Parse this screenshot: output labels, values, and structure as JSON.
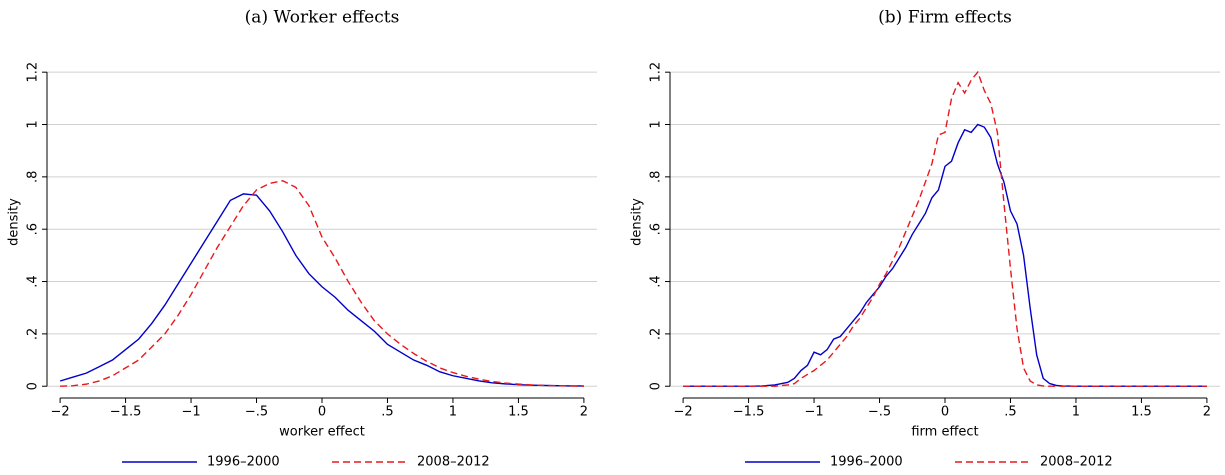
{
  "chart_data": [
    {
      "type": "line",
      "title": "(a) Worker effects",
      "xlabel": "worker effect",
      "ylabel": "density",
      "x": [
        -2,
        -1.9,
        -1.8,
        -1.7,
        -1.6,
        -1.5,
        -1.4,
        -1.3,
        -1.2,
        -1.1,
        -1,
        -0.9,
        -0.8,
        -0.7,
        -0.6,
        -0.5,
        -0.4,
        -0.3,
        -0.2,
        -0.1,
        0,
        0.1,
        0.2,
        0.3,
        0.4,
        0.5,
        0.6,
        0.7,
        0.8,
        0.9,
        1,
        1.1,
        1.2,
        1.3,
        1.4,
        1.5,
        1.6,
        1.7,
        1.8,
        1.9,
        2
      ],
      "series": [
        {
          "name": "1996–2000",
          "color": "#0000cc",
          "line_style": "solid",
          "values": [
            0.02,
            0.035,
            0.05,
            0.075,
            0.1,
            0.14,
            0.18,
            0.24,
            0.31,
            0.39,
            0.47,
            0.55,
            0.63,
            0.71,
            0.735,
            0.73,
            0.67,
            0.59,
            0.5,
            0.43,
            0.38,
            0.34,
            0.29,
            0.25,
            0.21,
            0.16,
            0.13,
            0.1,
            0.08,
            0.055,
            0.04,
            0.03,
            0.02,
            0.013,
            0.009,
            0.006,
            0.004,
            0.003,
            0.002,
            0.001,
            0.001
          ]
        },
        {
          "name": "2008–2012",
          "color": "#e8191d",
          "line_style": "dashed",
          "values": [
            0,
            0.002,
            0.008,
            0.02,
            0.04,
            0.07,
            0.1,
            0.15,
            0.2,
            0.27,
            0.35,
            0.44,
            0.53,
            0.61,
            0.69,
            0.75,
            0.775,
            0.785,
            0.76,
            0.69,
            0.57,
            0.49,
            0.4,
            0.32,
            0.25,
            0.2,
            0.16,
            0.125,
            0.095,
            0.07,
            0.052,
            0.038,
            0.027,
            0.018,
            0.012,
            0.008,
            0.005,
            0.003,
            0.002,
            0.001,
            0
          ]
        }
      ],
      "xlim": [
        -2.1,
        2.1
      ],
      "ylim": [
        -0.045,
        1.3
      ],
      "xticks": [
        {
          "value": -2,
          "label": "−2"
        },
        {
          "value": -1.5,
          "label": "−1.5"
        },
        {
          "value": -1,
          "label": "−1"
        },
        {
          "value": -0.5,
          "label": "−.5"
        },
        0,
        {
          "value": 0.5,
          "label": ".5"
        },
        1,
        1.5,
        2
      ],
      "yticks": [
        0,
        {
          "value": 0.2,
          "label": ".2"
        },
        {
          "value": 0.4,
          "label": ".4"
        },
        {
          "value": 0.6,
          "label": ".6"
        },
        {
          "value": 0.8,
          "label": ".8"
        },
        1,
        1.2
      ],
      "grid": true
    },
    {
      "type": "line",
      "title": "(b) Firm effects",
      "xlabel": "firm effect",
      "ylabel": "density",
      "x": [
        -2,
        -1.9,
        -1.8,
        -1.7,
        -1.6,
        -1.5,
        -1.4,
        -1.3,
        -1.2,
        -1.15,
        -1.1,
        -1.05,
        -1,
        -0.95,
        -0.9,
        -0.85,
        -0.8,
        -0.75,
        -0.7,
        -0.65,
        -0.6,
        -0.55,
        -0.5,
        -0.45,
        -0.4,
        -0.35,
        -0.3,
        -0.25,
        -0.2,
        -0.15,
        -0.1,
        -0.05,
        0,
        0.05,
        0.1,
        0.15,
        0.2,
        0.25,
        0.3,
        0.35,
        0.4,
        0.45,
        0.5,
        0.55,
        0.6,
        0.65,
        0.7,
        0.75,
        0.8,
        0.85,
        0.9,
        1,
        1.1,
        1.2,
        1.3,
        1.4,
        1.5,
        1.6,
        1.7,
        1.8,
        1.9,
        2
      ],
      "series": [
        {
          "name": "1996–2000",
          "color": "#0000cc",
          "line_style": "solid",
          "values": [
            0,
            0,
            0,
            0,
            0,
            0,
            0.001,
            0.005,
            0.015,
            0.03,
            0.06,
            0.08,
            0.13,
            0.12,
            0.14,
            0.18,
            0.19,
            0.22,
            0.25,
            0.28,
            0.32,
            0.35,
            0.38,
            0.42,
            0.45,
            0.49,
            0.53,
            0.58,
            0.62,
            0.66,
            0.72,
            0.75,
            0.84,
            0.86,
            0.93,
            0.98,
            0.97,
            1.0,
            0.99,
            0.95,
            0.85,
            0.78,
            0.67,
            0.62,
            0.5,
            0.3,
            0.12,
            0.03,
            0.01,
            0.003,
            0.001,
            0,
            0,
            0,
            0,
            0,
            0,
            0,
            0,
            0,
            0,
            0
          ]
        },
        {
          "name": "2008–2012",
          "color": "#e8191d",
          "line_style": "dashed",
          "values": [
            0,
            0,
            0,
            0,
            0,
            0,
            0,
            0,
            0.005,
            0.01,
            0.03,
            0.045,
            0.06,
            0.08,
            0.1,
            0.13,
            0.16,
            0.19,
            0.23,
            0.26,
            0.3,
            0.34,
            0.39,
            0.43,
            0.48,
            0.53,
            0.59,
            0.65,
            0.71,
            0.78,
            0.85,
            0.96,
            0.97,
            1.1,
            1.16,
            1.12,
            1.17,
            1.2,
            1.13,
            1.08,
            0.97,
            0.7,
            0.45,
            0.22,
            0.07,
            0.02,
            0.005,
            0.001,
            0,
            0,
            0,
            0,
            0,
            0,
            0,
            0,
            0,
            0,
            0,
            0,
            0,
            0
          ]
        }
      ],
      "xlim": [
        -2.1,
        2.1
      ],
      "ylim": [
        -0.045,
        1.3
      ],
      "xticks": [
        {
          "value": -2,
          "label": "−2"
        },
        {
          "value": -1.5,
          "label": "−1.5"
        },
        {
          "value": -1,
          "label": "−1"
        },
        {
          "value": -0.5,
          "label": "−.5"
        },
        0,
        {
          "value": 0.5,
          "label": ".5"
        },
        1,
        1.5,
        2
      ],
      "yticks": [
        0,
        {
          "value": 0.2,
          "label": ".2"
        },
        {
          "value": 0.4,
          "label": ".4"
        },
        {
          "value": 0.6,
          "label": ".6"
        },
        {
          "value": 0.8,
          "label": ".8"
        },
        1,
        1.2
      ],
      "grid": true
    }
  ]
}
